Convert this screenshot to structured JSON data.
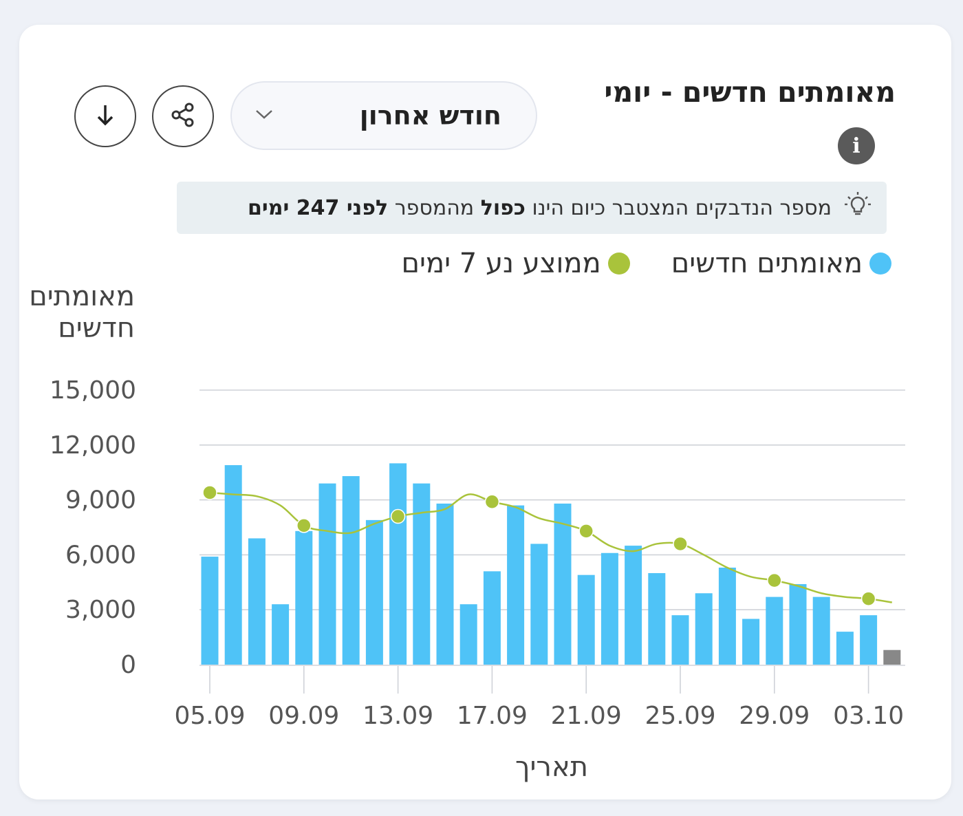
{
  "header": {
    "title": "מאומתים חדשים - יומי",
    "period_select": "חודש אחרון",
    "info_icon": "info-icon",
    "share_icon": "share-icon",
    "download_icon": "download-arrow-icon"
  },
  "insight": {
    "icon": "lightbulb-icon",
    "text_1": "מספר הנדבקים המצטבר כיום הינו",
    "bold_1": "כפול",
    "text_2": "מהמספר",
    "bold_2": "לפני 247 ימים"
  },
  "colors": {
    "bars": "#4fc3f7",
    "last_bar": "#888888",
    "moving_average": "#a9c33b"
  },
  "chart_data": {
    "type": "bar",
    "ylabel": "מאומתים חדשים",
    "xlabel": "תאריך",
    "ylim": [
      0,
      15000
    ],
    "yticks": [
      0,
      3000,
      6000,
      9000,
      12000,
      15000
    ],
    "ytick_labels": [
      "0",
      "3,000",
      "6,000",
      "9,000",
      "12,000",
      "15,000"
    ],
    "xtick_labels": [
      "05.09",
      "09.09",
      "13.09",
      "17.09",
      "21.09",
      "25.09",
      "29.09",
      "03.10"
    ],
    "legend_position": "top",
    "grid": true,
    "categories": [
      "05.09",
      "06.09",
      "07.09",
      "08.09",
      "09.09",
      "10.09",
      "11.09",
      "12.09",
      "13.09",
      "14.09",
      "15.09",
      "16.09",
      "17.09",
      "18.09",
      "19.09",
      "20.09",
      "21.09",
      "22.09",
      "23.09",
      "24.09",
      "25.09",
      "26.09",
      "27.09",
      "28.09",
      "29.09",
      "30.09",
      "01.10",
      "02.10",
      "03.10",
      "04.10"
    ],
    "series": [
      {
        "name": "מאומתים חדשים",
        "type": "bar",
        "values": [
          5900,
          10900,
          6900,
          3300,
          7300,
          9900,
          10300,
          7900,
          11000,
          9900,
          8800,
          3300,
          5100,
          8700,
          6600,
          8800,
          4900,
          6100,
          6500,
          5000,
          2700,
          3900,
          5300,
          2500,
          3700,
          4400,
          3700,
          1800,
          2700,
          800
        ]
      },
      {
        "name": "ממוצע נע 7 ימים",
        "type": "line",
        "values": [
          9400,
          9300,
          9200,
          8700,
          7600,
          7300,
          7200,
          7700,
          8100,
          8300,
          8500,
          9300,
          8900,
          8600,
          8000,
          7700,
          7300,
          6500,
          6200,
          6600,
          6600,
          6000,
          5300,
          4800,
          4600,
          4300,
          3900,
          3700,
          3600,
          3400
        ]
      }
    ]
  }
}
